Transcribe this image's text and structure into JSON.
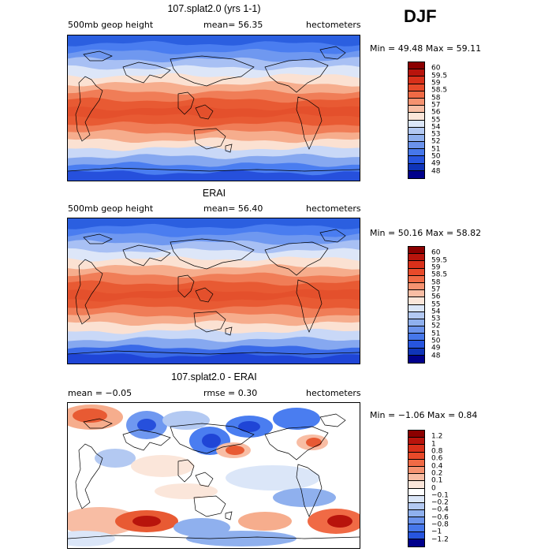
{
  "season": "DJF",
  "panels": [
    {
      "title": "107.splat2.0 (yrs 1-1)",
      "left_label": "500mb geop height",
      "mid_label": "mean=  56.35",
      "units": "hectometers",
      "minmax": "Min =  49.48 Max =  59.11",
      "colorbar_labels": [
        "60",
        "59.5",
        "59",
        "58.5",
        "58",
        "57",
        "56",
        "55",
        "54",
        "53",
        "52",
        "51",
        "50",
        "49",
        "48"
      ]
    },
    {
      "title": "ERAI",
      "left_label": "500mb geop height",
      "mid_label": "mean=  56.40",
      "units": "hectometers",
      "minmax": "Min =  50.16 Max =  58.82",
      "colorbar_labels": [
        "60",
        "59.5",
        "59",
        "58.5",
        "58",
        "57",
        "56",
        "55",
        "54",
        "53",
        "52",
        "51",
        "50",
        "49",
        "48"
      ]
    },
    {
      "title": "107.splat2.0 - ERAI",
      "left_label": "mean =   −0.05",
      "mid_label": "rmse =    0.30",
      "units": "hectometers",
      "minmax": "Min =  −1.06 Max =   0.84",
      "colorbar_labels": [
        "1.2",
        "1",
        "0.8",
        "0.6",
        "0.4",
        "0.2",
        "0.1",
        "0",
        "−0.1",
        "−0.2",
        "−0.4",
        "−0.6",
        "−0.8",
        "−1",
        "−1.2"
      ]
    }
  ],
  "colors": {
    "abs_scale": [
      "#8b0000",
      "#b8140c",
      "#d9301a",
      "#e84a2a",
      "#f06a45",
      "#f59270",
      "#f8bda4",
      "#fbe6da",
      "#dbe6f8",
      "#b3c9f2",
      "#8fb0ee",
      "#6b93ec",
      "#4677ea",
      "#2755df",
      "#0f34b8",
      "#00008b"
    ],
    "diff_scale": [
      "#8b0000",
      "#b8140c",
      "#d9301a",
      "#e84a2a",
      "#f06a45",
      "#f59270",
      "#f8bda4",
      "#fbe6da",
      "#ffffff",
      "#dbe6f8",
      "#b3c9f2",
      "#8fb0ee",
      "#6b93ec",
      "#4677ea",
      "#2755df",
      "#00008b"
    ],
    "model_bands": [
      "#2b5fe0",
      "#4a7df0",
      "#6f98f0",
      "#a8c0f4",
      "#dde6f8",
      "#fbe1d2",
      "#f6ad8d",
      "#f07d57",
      "#e85a33",
      "#e4502c",
      "#e85a33",
      "#f07d57",
      "#f6ad8d",
      "#fbe1d2",
      "#c9d8f7",
      "#86a8f0",
      "#4a7df0",
      "#2650dc"
    ],
    "erai_bands": [
      "#2b5fe0",
      "#4a7df0",
      "#6f98f0",
      "#a8c0f4",
      "#dde6f8",
      "#fbe1d2",
      "#f6ad8d",
      "#f07d57",
      "#e85a33",
      "#e4502c",
      "#e85a33",
      "#f07d57",
      "#f6ad8d",
      "#fbe1d2",
      "#c9d8f7",
      "#86a8f0",
      "#3a6ae8",
      "#1f45d6"
    ]
  }
}
